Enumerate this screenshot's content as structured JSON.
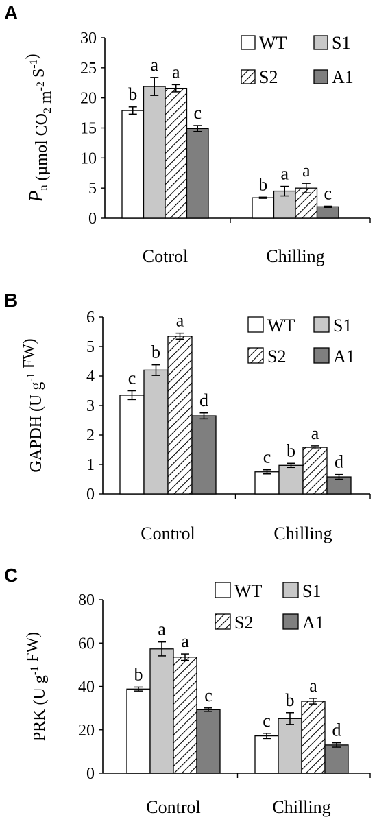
{
  "colors": {
    "WT": "#ffffff",
    "S1": "#c8c8c8",
    "S2": "hatch",
    "A1": "#7f7f7f",
    "axis": "#000000"
  },
  "chart_data": [
    {
      "panel": "A",
      "type": "bar",
      "ylabel": "Pn (µmol CO2 m-2 S-1)",
      "ylabel_parts": [
        "P",
        "n",
        " (µmol CO",
        "2",
        " m",
        "-2",
        " S",
        "-1",
        ")"
      ],
      "ylim": [
        0,
        30
      ],
      "yticks": [
        0,
        5,
        10,
        15,
        20,
        25,
        30
      ],
      "categories": [
        "Cotrol",
        "Chilling"
      ],
      "legend": [
        "WT",
        "S1",
        "S2",
        "A1"
      ],
      "series": [
        {
          "name": "WT",
          "values": [
            17.9,
            3.4
          ],
          "errors": [
            0.6,
            0.1
          ],
          "letters": [
            "b",
            "b"
          ]
        },
        {
          "name": "S1",
          "values": [
            21.9,
            4.5
          ],
          "errors": [
            1.5,
            0.8
          ],
          "letters": [
            "a",
            "a"
          ]
        },
        {
          "name": "S2",
          "values": [
            21.6,
            5.0
          ],
          "errors": [
            0.6,
            0.8
          ],
          "letters": [
            "a",
            "a"
          ]
        },
        {
          "name": "A1",
          "values": [
            14.9,
            1.9
          ],
          "errors": [
            0.5,
            0.1
          ],
          "letters": [
            "c",
            "c"
          ]
        }
      ]
    },
    {
      "panel": "B",
      "type": "bar",
      "ylabel": "GAPDH (U g-1 FW)",
      "ylabel_parts": [
        "GAPDH (U g",
        "-1",
        " FW)"
      ],
      "ylim": [
        0,
        6
      ],
      "yticks": [
        0,
        1,
        2,
        3,
        4,
        5,
        6
      ],
      "categories": [
        "Control",
        "Chilling"
      ],
      "legend": [
        "WT",
        "S1",
        "S2",
        "A1"
      ],
      "series": [
        {
          "name": "WT",
          "values": [
            3.35,
            0.75
          ],
          "errors": [
            0.15,
            0.07
          ],
          "letters": [
            "c",
            "c"
          ]
        },
        {
          "name": "S1",
          "values": [
            4.2,
            0.97
          ],
          "errors": [
            0.18,
            0.07
          ],
          "letters": [
            "b",
            "b"
          ]
        },
        {
          "name": "S2",
          "values": [
            5.35,
            1.58
          ],
          "errors": [
            0.1,
            0.05
          ],
          "letters": [
            "a",
            "a"
          ]
        },
        {
          "name": "A1",
          "values": [
            2.65,
            0.58
          ],
          "errors": [
            0.1,
            0.08
          ],
          "letters": [
            "d",
            "d"
          ]
        }
      ]
    },
    {
      "panel": "C",
      "type": "bar",
      "ylabel": "PRK (U g-1 FW)",
      "ylabel_parts": [
        "PRK (U g",
        "-1",
        " FW)"
      ],
      "ylim": [
        0,
        80
      ],
      "yticks": [
        0,
        20,
        40,
        60,
        80
      ],
      "categories": [
        "Control",
        "Chilling"
      ],
      "legend": [
        "WT",
        "S1",
        "S2",
        "A1"
      ],
      "series": [
        {
          "name": "WT",
          "values": [
            38.8,
            17.2
          ],
          "errors": [
            0.9,
            1.2
          ],
          "letters": [
            "b",
            "c"
          ]
        },
        {
          "name": "S1",
          "values": [
            57.3,
            25.2
          ],
          "errors": [
            3.2,
            2.7
          ],
          "letters": [
            "a",
            "b"
          ]
        },
        {
          "name": "S2",
          "values": [
            53.5,
            33.2
          ],
          "errors": [
            1.5,
            1.3
          ],
          "letters": [
            "a",
            "a"
          ]
        },
        {
          "name": "A1",
          "values": [
            29.3,
            13.0
          ],
          "errors": [
            0.8,
            1.0
          ],
          "letters": [
            "c",
            "d"
          ]
        }
      ]
    }
  ]
}
